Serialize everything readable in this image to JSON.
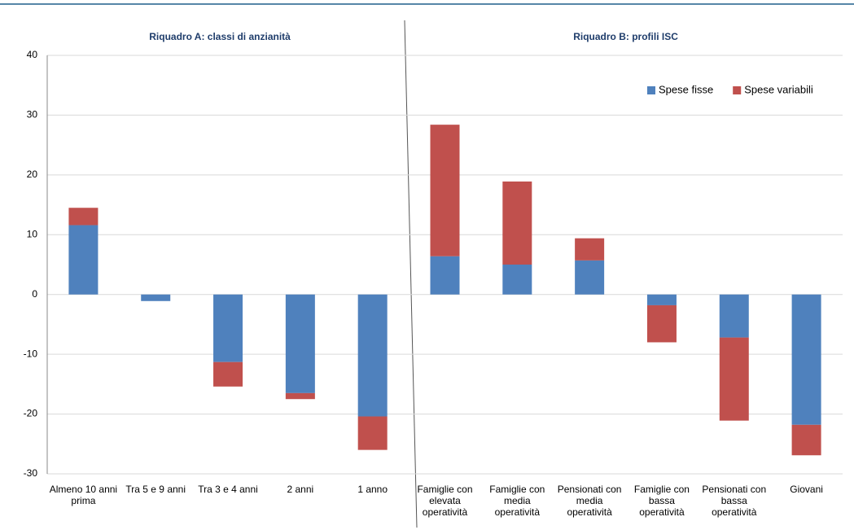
{
  "chart_data": {
    "type": "stacked_bar",
    "annotations": [
      "Riquadro A: classi di anzianità",
      "Riquadro B: profili ISC"
    ],
    "categories": [
      "Almeno 10 anni prima",
      "Tra 5 e 9 anni",
      "Tra 3 e 4 anni",
      "2 anni",
      "1 anno",
      "Famiglie con elevata operatività",
      "Famiglie con media operatività",
      "Pensionati con media operatività",
      "Famiglie con bassa operatività",
      "Pensionati con bassa operatività",
      "Giovani"
    ],
    "series": [
      {
        "name": "Spese fisse",
        "color": "#4f81bd",
        "values": [
          11.6,
          -1.1,
          -11.3,
          -16.5,
          -20.4,
          6.4,
          5.0,
          5.7,
          -1.8,
          -7.2,
          -21.8
        ]
      },
      {
        "name": "Spese variabili",
        "color": "#c0504d",
        "values": [
          2.9,
          0,
          -4.1,
          -1.0,
          -5.6,
          22.0,
          13.9,
          3.7,
          -6.2,
          -13.9,
          -5.1
        ]
      }
    ],
    "ylim": [
      -30,
      40
    ],
    "yticks": [
      -30,
      -20,
      -10,
      0,
      10,
      20,
      30,
      40
    ],
    "grid": true,
    "legend": "upper right"
  }
}
